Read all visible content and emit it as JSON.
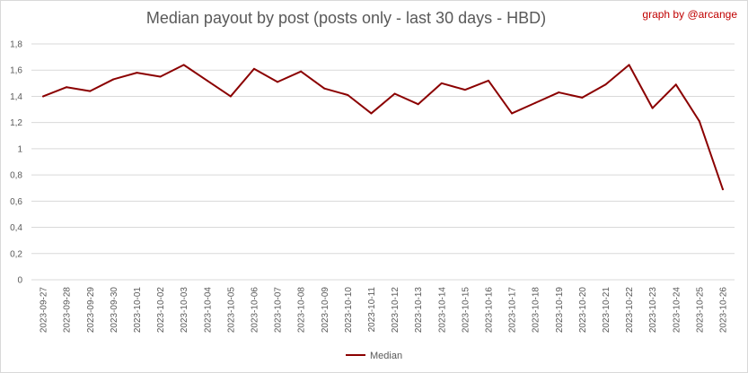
{
  "header": {
    "title": "Median payout by post (posts only - last 30 days - HBD)",
    "credit": "graph by @arcange"
  },
  "colors": {
    "series": "#8b0000",
    "grid": "#d9d9d9",
    "text": "#595959",
    "credit": "#c00000"
  },
  "chart_data": {
    "type": "line",
    "title": "Median payout by post (posts only - last 30 days - HBD)",
    "x": [
      "2023-09-27",
      "2023-09-28",
      "2023-09-29",
      "2023-09-30",
      "2023-10-01",
      "2023-10-02",
      "2023-10-03",
      "2023-10-04",
      "2023-10-05",
      "2023-10-06",
      "2023-10-07",
      "2023-10-08",
      "2023-10-09",
      "2023-10-10",
      "2023-10-11",
      "2023-10-12",
      "2023-10-13",
      "2023-10-14",
      "2023-10-15",
      "2023-10-16",
      "2023-10-17",
      "2023-10-18",
      "2023-10-19",
      "2023-10-20",
      "2023-10-21",
      "2023-10-22",
      "2023-10-23",
      "2023-10-24",
      "2023-10-25",
      "2023-10-26"
    ],
    "series": [
      {
        "name": "Median",
        "values": [
          1.4,
          1.47,
          1.44,
          1.53,
          1.58,
          1.55,
          1.64,
          1.52,
          1.4,
          1.61,
          1.51,
          1.59,
          1.46,
          1.41,
          1.27,
          1.42,
          1.34,
          1.5,
          1.45,
          1.52,
          1.27,
          1.35,
          1.43,
          1.39,
          1.49,
          1.64,
          1.31,
          1.49,
          1.21,
          0.69
        ]
      }
    ],
    "yticks": [
      "0",
      "0,2",
      "0,4",
      "0,6",
      "0,8",
      "1",
      "1,2",
      "1,4",
      "1,6",
      "1,8"
    ],
    "ylim": [
      0,
      1.8
    ],
    "grid": true,
    "legend": "bottom-center"
  }
}
